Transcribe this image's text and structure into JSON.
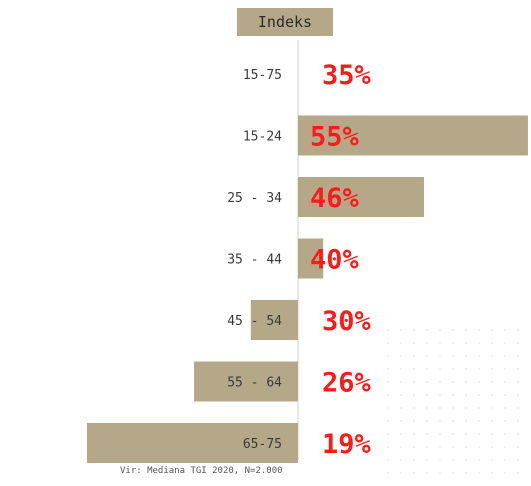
{
  "colors": {
    "bar": "#b5a889",
    "value_text": "#ff1a1a",
    "label_text": "#3a3a3a",
    "axis": "#cfcfcf"
  },
  "header": {
    "label": "Indeks"
  },
  "footnote": "Vir: Mediana TGI 2020, N=2.000",
  "chart_data": {
    "type": "bar",
    "orientation": "horizontal",
    "baseline": 100,
    "value_axis_range": [
      33,
      173
    ],
    "categories": [
      "15-75",
      "15-24",
      "25 - 34",
      "35 - 44",
      "45 - 54",
      "55 - 64",
      "65-75"
    ],
    "values": [
      100,
      173,
      140,
      108,
      85,
      67,
      33
    ],
    "value_labels": [
      "35%",
      "55%",
      "46%",
      "40%",
      "30%",
      "26%",
      "19%"
    ]
  }
}
